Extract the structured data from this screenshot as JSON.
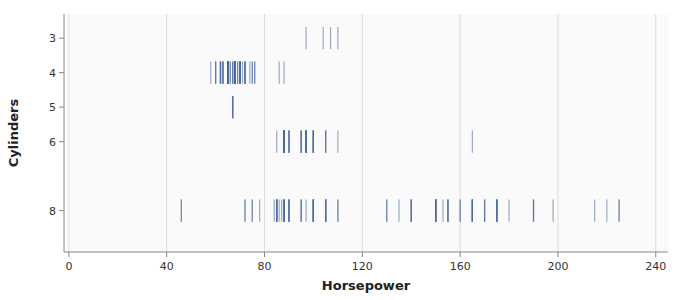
{
  "chart_data": {
    "type": "strip",
    "xlabel": "Horsepower",
    "ylabel": "Cylinders",
    "xlim": [
      -2,
      245
    ],
    "xticks": [
      0,
      40,
      80,
      120,
      160,
      200,
      240
    ],
    "ylim": [
      9.2,
      2.3
    ],
    "yticks": [
      3,
      4,
      5,
      6,
      8
    ],
    "grid": "x",
    "color": "#4a6a9a",
    "x": [
      97,
      110,
      107,
      104,
      88,
      72,
      75,
      71,
      70,
      76,
      70,
      65,
      69,
      60,
      70,
      76,
      75,
      72,
      86,
      70,
      68,
      65,
      68,
      66,
      70,
      65,
      62,
      68,
      68,
      60,
      68,
      65,
      62,
      68,
      68,
      69,
      72,
      70,
      68,
      68,
      70,
      70,
      74,
      58,
      66,
      67,
      62,
      68,
      65,
      65,
      68,
      60,
      67,
      62,
      65,
      65,
      63,
      68,
      65,
      68,
      65,
      68,
      72,
      70,
      62,
      65,
      68,
      68,
      68,
      65,
      72,
      62,
      63,
      65,
      67,
      63,
      63,
      65,
      65,
      65,
      65,
      65,
      65,
      65,
      68,
      65,
      68,
      68,
      68,
      68,
      68,
      68,
      68,
      68,
      68,
      68,
      68,
      68,
      68,
      68,
      68,
      68,
      68,
      68,
      68,
      68,
      67,
      67,
      67,
      67,
      100,
      88,
      100,
      100,
      88,
      88,
      100,
      90,
      90,
      88,
      88,
      88,
      88,
      88,
      90,
      88,
      88,
      88,
      97,
      97,
      95,
      88,
      97,
      95,
      97,
      100,
      97,
      97,
      100,
      97,
      97,
      95,
      97,
      95,
      100,
      88,
      88,
      88,
      88,
      88,
      88,
      88,
      88,
      88,
      88,
      88,
      88,
      88,
      88,
      110,
      165,
      105,
      100,
      105,
      85,
      100,
      90,
      105,
      100,
      130,
      165,
      150,
      150,
      140,
      198,
      220,
      215,
      225,
      190,
      170,
      160,
      150,
      225,
      95,
      95,
      97,
      85,
      88,
      46,
      46,
      100,
      105,
      100,
      88,
      100,
      165,
      175,
      150,
      153,
      150,
      180,
      170,
      175,
      110,
      72,
      72,
      100,
      88,
      86,
      84,
      90,
      90,
      110,
      130,
      140,
      165,
      150,
      150,
      140,
      175,
      165,
      135,
      155,
      140,
      155,
      150,
      190,
      175,
      155,
      170,
      175,
      100,
      105,
      88,
      100,
      165,
      165,
      160,
      155,
      165,
      175,
      150,
      190,
      105,
      100,
      105,
      85,
      100,
      90,
      105,
      100,
      85,
      100,
      90,
      105,
      100,
      75,
      85,
      87,
      85,
      95,
      85,
      88,
      100,
      90,
      105,
      75,
      78,
      88,
      85,
      88,
      100
    ],
    "y": [
      3,
      3,
      3,
      3,
      4,
      4,
      4,
      4,
      4,
      4,
      4,
      4,
      4,
      4,
      4,
      4,
      4,
      4,
      4,
      4,
      4,
      4,
      4,
      4,
      4,
      4,
      4,
      4,
      4,
      4,
      4,
      4,
      4,
      4,
      4,
      4,
      4,
      4,
      4,
      4,
      4,
      4,
      4,
      4,
      4,
      4,
      4,
      4,
      4,
      4,
      4,
      4,
      4,
      4,
      4,
      4,
      4,
      4,
      4,
      4,
      4,
      4,
      4,
      4,
      4,
      4,
      4,
      4,
      4,
      4,
      4,
      4,
      4,
      4,
      4,
      4,
      4,
      4,
      4,
      4,
      4,
      4,
      4,
      4,
      4,
      4,
      4,
      4,
      4,
      4,
      4,
      4,
      4,
      4,
      4,
      4,
      4,
      4,
      4,
      4,
      4,
      4,
      4,
      4,
      4,
      4,
      5,
      5,
      5,
      5,
      6,
      6,
      6,
      6,
      6,
      6,
      6,
      6,
      6,
      6,
      6,
      6,
      6,
      6,
      6,
      6,
      6,
      6,
      6,
      6,
      6,
      6,
      6,
      6,
      6,
      6,
      6,
      6,
      6,
      6,
      6,
      6,
      6,
      6,
      6,
      6,
      6,
      6,
      6,
      6,
      6,
      6,
      6,
      6,
      6,
      6,
      6,
      6,
      6,
      6,
      6,
      6,
      6,
      6,
      6,
      6,
      6,
      6,
      6,
      8,
      8,
      8,
      8,
      8,
      8,
      8,
      8,
      8,
      8,
      8,
      8,
      8,
      8,
      8,
      8,
      8,
      8,
      8,
      8,
      8,
      8,
      8,
      8,
      8,
      8,
      8,
      8,
      8,
      8,
      8,
      8,
      8,
      8,
      8,
      8,
      8,
      8,
      8,
      8,
      8,
      8,
      8,
      8,
      8,
      8,
      8,
      8,
      8,
      8,
      8,
      8,
      8,
      8,
      8,
      8,
      8,
      8,
      8,
      8,
      8,
      8,
      8,
      8,
      8,
      8,
      8,
      8,
      8,
      8,
      8,
      8,
      8,
      8,
      8,
      8,
      8,
      8,
      8,
      8,
      8,
      8,
      8,
      8,
      8,
      8,
      8,
      8,
      8,
      8,
      8,
      8,
      8,
      8,
      8,
      8,
      8,
      8,
      8,
      8,
      8,
      8,
      8
    ]
  }
}
